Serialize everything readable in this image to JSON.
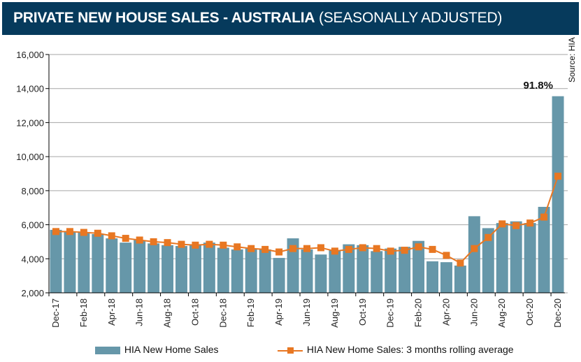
{
  "header": {
    "title_bold": "PRIVATE NEW HOUSE SALES -  AUSTRALIA",
    "title_light": "(SEASONALLY ADJUSTED)"
  },
  "source": "Source: HIA",
  "annotation": "91.8%",
  "colors": {
    "header_bg": "#063a5c",
    "bar": "#6697a9",
    "line": "#e87722",
    "grid": "#a6a6a6"
  },
  "chart_data": {
    "type": "bar+line",
    "title": "PRIVATE NEW HOUSE SALES - AUSTRALIA (SEASONALLY ADJUSTED)",
    "xlabel": "",
    "ylabel": "",
    "ylim": [
      2000,
      16000
    ],
    "yticks": [
      2000,
      4000,
      6000,
      8000,
      10000,
      12000,
      14000,
      16000
    ],
    "ytick_labels": [
      "2,000",
      "4,000",
      "6,000",
      "8,000",
      "10,000",
      "12,000",
      "14,000",
      "16,000"
    ],
    "grid": true,
    "legend_position": "bottom",
    "categories": [
      "Dec-17",
      "Jan-18",
      "Feb-18",
      "Mar-18",
      "Apr-18",
      "May-18",
      "Jun-18",
      "Jul-18",
      "Aug-18",
      "Sep-18",
      "Oct-18",
      "Nov-18",
      "Dec-18",
      "Jan-19",
      "Feb-19",
      "Mar-19",
      "Apr-19",
      "May-19",
      "Jun-19",
      "Jul-19",
      "Aug-19",
      "Sep-19",
      "Oct-19",
      "Nov-19",
      "Dec-19",
      "Jan-20",
      "Feb-20",
      "Mar-20",
      "Apr-20",
      "May-20",
      "Jun-20",
      "Jul-20",
      "Aug-20",
      "Sep-20",
      "Oct-20",
      "Nov-20",
      "Dec-20"
    ],
    "xtick_labels": [
      "Dec-17",
      "Feb-18",
      "Apr-18",
      "Jun-18",
      "Aug-18",
      "Oct-18",
      "Dec-18",
      "Feb-19",
      "Apr-19",
      "Jun-19",
      "Aug-19",
      "Oct-19",
      "Dec-19",
      "Feb-20",
      "Apr-20",
      "Jun-20",
      "Aug-20",
      "Oct-20",
      "Dec-20"
    ],
    "series": [
      {
        "name": "HIA New Home Sales",
        "type": "bar",
        "values": [
          5700,
          5600,
          5550,
          5450,
          5200,
          4950,
          5100,
          4900,
          4800,
          4750,
          4800,
          4950,
          4650,
          4550,
          4600,
          4550,
          4050,
          5200,
          4550,
          4250,
          4500,
          4850,
          4800,
          4450,
          4600,
          4700,
          5050,
          3850,
          3800,
          3600,
          6500,
          5800,
          6100,
          6200,
          6100,
          7050,
          13550
        ]
      },
      {
        "name": "HIA New Home Sales: 3 months rolling average",
        "type": "line",
        "values": [
          5600,
          5600,
          5550,
          5500,
          5350,
          5200,
          5100,
          5000,
          4950,
          4850,
          4800,
          4850,
          4800,
          4700,
          4600,
          4550,
          4400,
          4600,
          4600,
          4650,
          4450,
          4550,
          4650,
          4600,
          4450,
          4500,
          4700,
          4550,
          4200,
          3750,
          4600,
          5250,
          6050,
          5950,
          6100,
          6450,
          8850
        ]
      }
    ],
    "annotations": [
      {
        "category": "Dec-20",
        "text": "91.8%"
      }
    ]
  }
}
